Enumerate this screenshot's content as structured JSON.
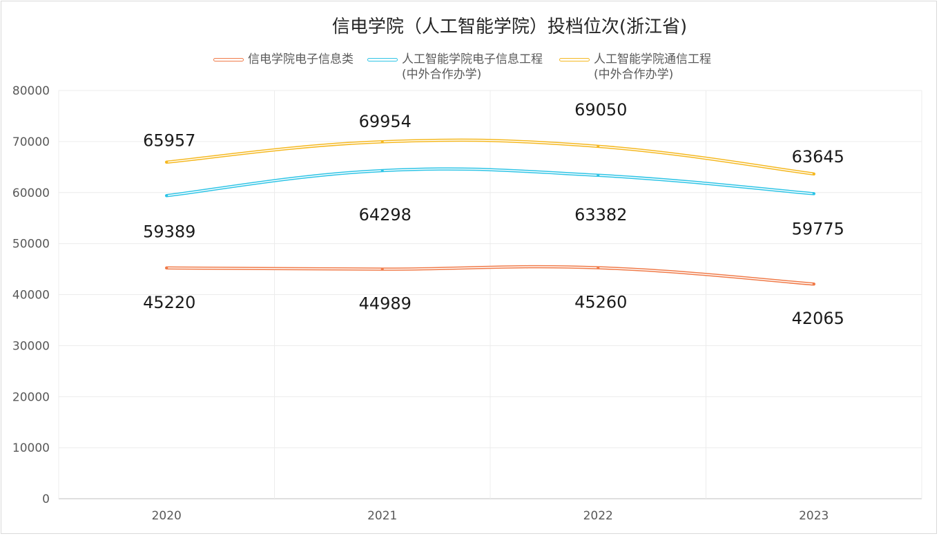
{
  "chart_data": {
    "type": "line",
    "title": "信电学院（人工智能学院）投档位次(浙江省)",
    "categories": [
      "2020",
      "2021",
      "2022",
      "2023"
    ],
    "ylim": [
      0,
      80000
    ],
    "yticks": [
      "0",
      "10000",
      "20000",
      "30000",
      "40000",
      "50000",
      "60000",
      "70000",
      "80000"
    ],
    "grid": true,
    "legend_position": "top",
    "series": [
      {
        "name": "信电学院电子信息类",
        "name_line2": "",
        "color": "#f07a48",
        "values": [
          45220,
          44989,
          45260,
          42065
        ],
        "labels": [
          "45220",
          "44989",
          "45260",
          "42065"
        ]
      },
      {
        "name": "人工智能学院电子信息工程",
        "name_line2": "(中外合作办学)",
        "color": "#2ec4e6",
        "values": [
          59389,
          64298,
          63382,
          59775
        ],
        "labels": [
          "59389",
          "64298",
          "63382",
          "59775"
        ]
      },
      {
        "name": "人工智能学院通信工程",
        "name_line2": "(中外合作办学)",
        "color": "#f5b820",
        "values": [
          65957,
          69954,
          69050,
          63645
        ],
        "labels": [
          "65957",
          "69954",
          "69050",
          "63645"
        ]
      }
    ]
  }
}
